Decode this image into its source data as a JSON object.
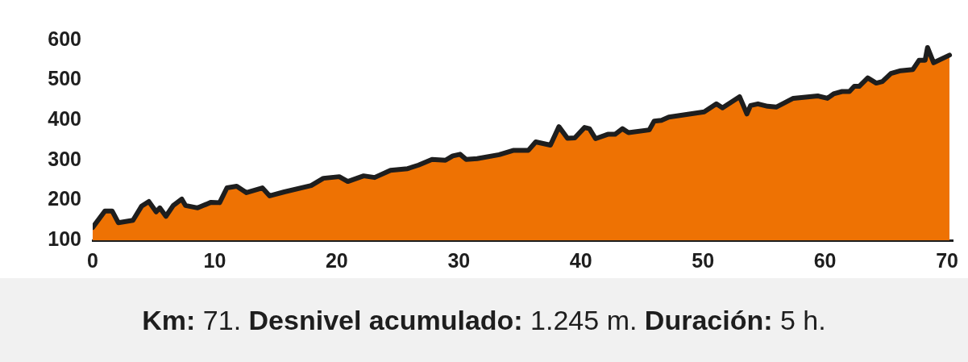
{
  "chart_data": {
    "type": "area",
    "annotations": [
      "Km: 71. Desnivel acumulado: 1.245 m. Duración: 5 h."
    ],
    "series": [
      {
        "color": "#ee7203",
        "x": [
          0,
          1.0,
          1.6,
          2.1,
          3.3,
          4.0,
          4.6,
          5.2,
          5.5,
          6.0,
          6.6,
          7.3,
          7.6,
          8.6,
          9.7,
          10.4,
          11.0,
          11.8,
          12.6,
          13.9,
          14.5,
          15.7,
          17.9,
          18.9,
          20.2,
          20.9,
          22.2,
          23.1,
          24.4,
          25.8,
          26.7,
          27.8,
          28.9,
          29.5,
          30.1,
          30.6,
          31.5,
          33.3,
          34.5,
          35.7,
          36.3,
          37.5,
          38.2,
          38.9,
          39.5,
          40.3,
          40.7,
          41.2,
          42.2,
          42.8,
          43.4,
          43.9,
          45.6,
          46.0,
          46.6,
          47.2,
          50.1,
          51.1,
          51.6,
          53.0,
          53.6,
          53.9,
          54.5,
          55.3,
          56.0,
          57.4,
          59.4,
          60.2,
          60.7,
          61.4,
          62.0,
          62.4,
          62.8,
          63.5,
          64.2,
          64.7,
          65.4,
          66.2,
          67.2,
          67.7,
          68.2,
          68.4,
          68.9,
          70.2
        ],
        "values": [
          132,
          173,
          173,
          144,
          150,
          185,
          197,
          171,
          181,
          160,
          187,
          203,
          187,
          181,
          195,
          194,
          231,
          235,
          219,
          231,
          211,
          221,
          237,
          255,
          259,
          247,
          261,
          257,
          275,
          279,
          288,
          302,
          300,
          311,
          315,
          302,
          304,
          314,
          325,
          325,
          346,
          338,
          384,
          355,
          356,
          382,
          379,
          354,
          365,
          365,
          379,
          369,
          376,
          398,
          400,
          408,
          421,
          441,
          431,
          459,
          416,
          437,
          441,
          435,
          433,
          455,
          461,
          455,
          466,
          472,
          472,
          485,
          485,
          506,
          493,
          497,
          517,
          524,
          527,
          550,
          550,
          582,
          544,
          563
        ]
      }
    ],
    "xlim": [
      0,
      70.5
    ],
    "xticks": [
      0,
      10,
      20,
      30,
      40,
      50,
      60,
      70
    ],
    "ylim": [
      100,
      600
    ],
    "yticks": [
      100,
      200,
      300,
      400,
      500,
      600
    ],
    "grid": false,
    "legend": false
  }
}
